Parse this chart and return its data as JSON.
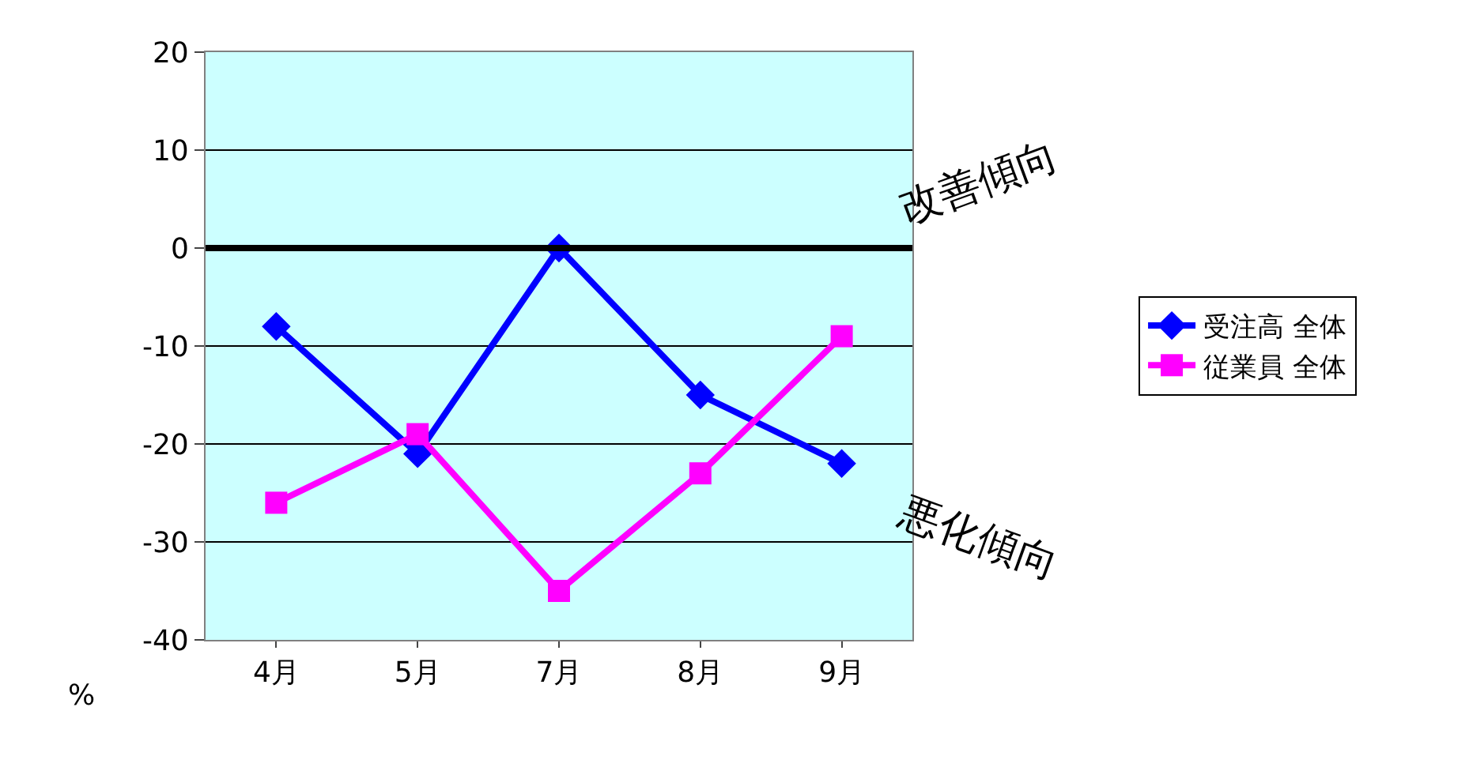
{
  "chart_data": {
    "type": "line",
    "categories": [
      "4月",
      "5月",
      "7月",
      "8月",
      "9月"
    ],
    "series": [
      {
        "name": "受注高 全体",
        "color": "#0000ff",
        "marker": "diamond",
        "values": [
          -8,
          -21,
          0,
          -15,
          -22
        ]
      },
      {
        "name": "従業員 全体",
        "color": "#ff00ff",
        "marker": "square",
        "values": [
          -26,
          -19,
          -35,
          -23,
          -9
        ]
      }
    ],
    "ylim": [
      -40,
      20
    ],
    "yticks": [
      -40,
      -30,
      -20,
      -10,
      0,
      10,
      20
    ],
    "ylabel": "%",
    "grid": "y",
    "legend": "right",
    "line_style": "solid",
    "ref_lines": [
      {
        "axis": "y",
        "value": 0,
        "color": "#000000"
      }
    ],
    "annotations": [
      "改善傾向",
      "悪化傾向"
    ]
  }
}
